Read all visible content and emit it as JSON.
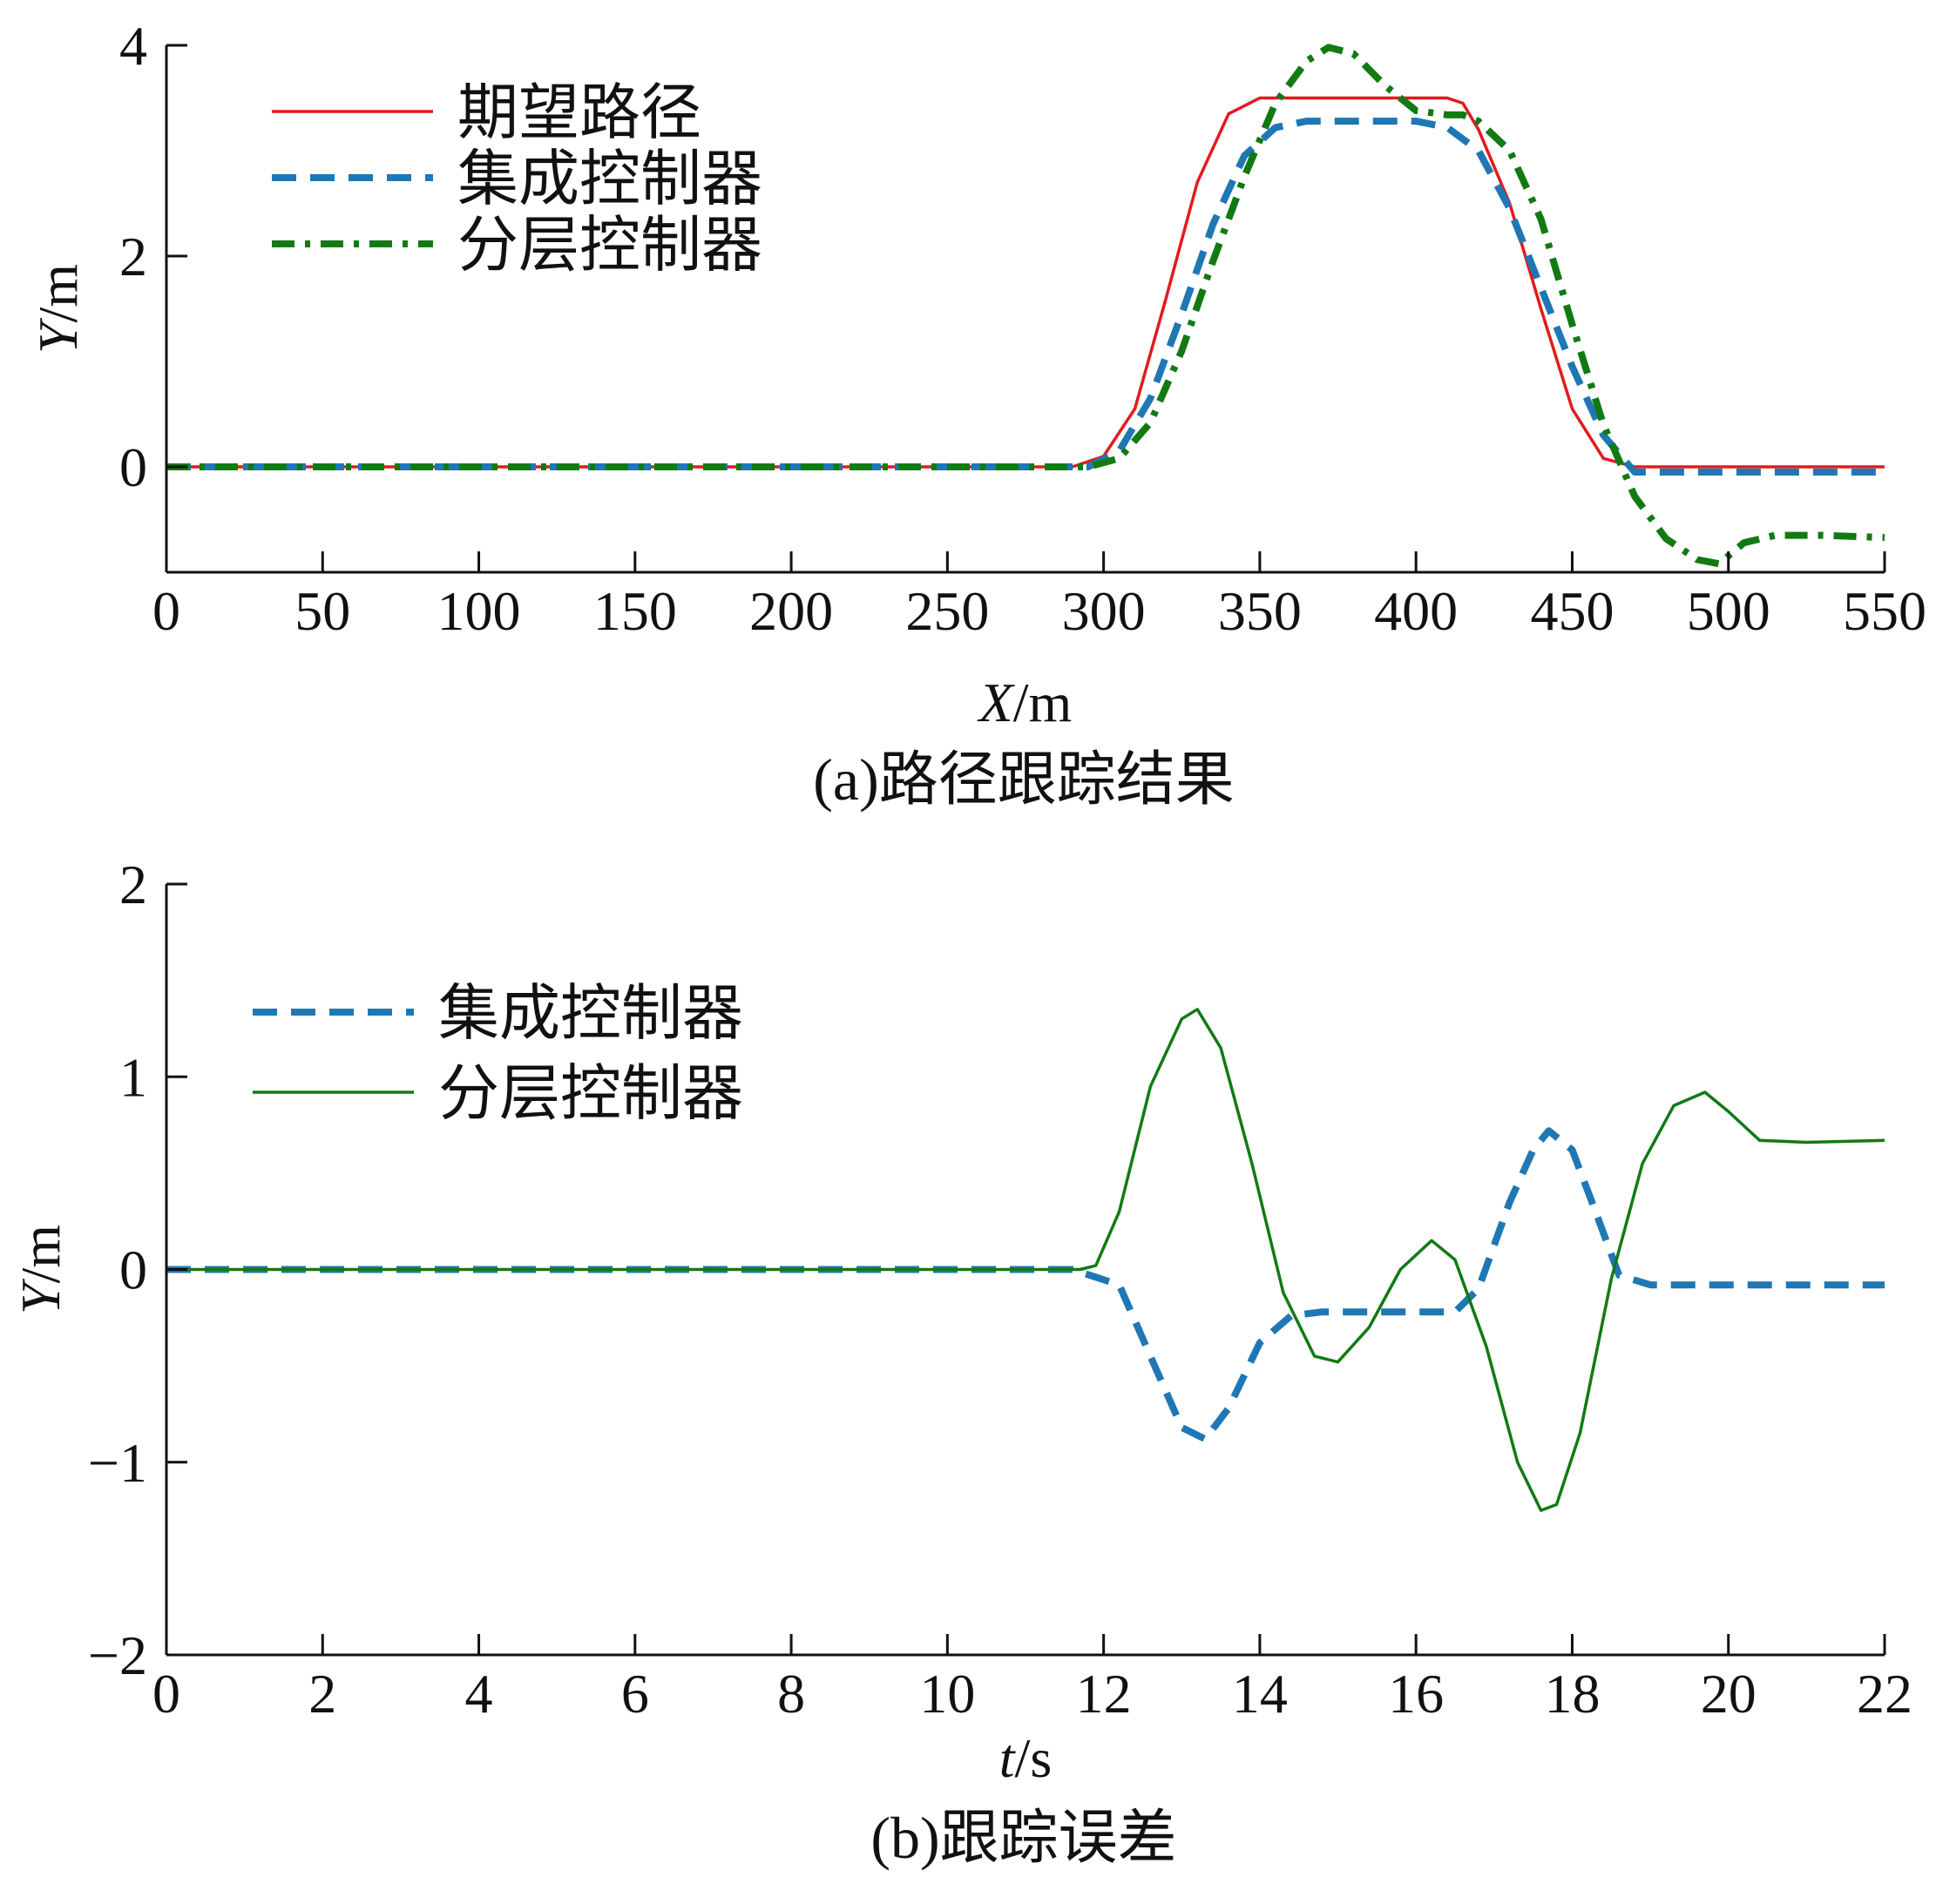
{
  "colors": {
    "red": "#e31a1c",
    "blue": "#1f77b4",
    "green": "#127a12",
    "axis": "#111111"
  },
  "chart_data": [
    {
      "type": "line",
      "caption": "(a)路径跟踪结果",
      "xlabel": {
        "var": "X",
        "unit": "/m"
      },
      "ylabel": {
        "var": "Y",
        "unit": "/m"
      },
      "xlim": [
        0,
        550
      ],
      "ylim": [
        -1,
        4
      ],
      "xticks": [
        "0",
        "50",
        "100",
        "150",
        "200",
        "250",
        "300",
        "350",
        "400",
        "450",
        "500",
        "550"
      ],
      "yticks": [
        "0",
        "2",
        "4"
      ],
      "legend_position": "top-left",
      "series": [
        {
          "name": "期望路径",
          "color": "red",
          "style": "solid",
          "x": [
            0,
            290,
            300,
            310,
            320,
            330,
            340,
            350,
            360,
            380,
            400,
            410,
            415,
            420,
            430,
            440,
            450,
            460,
            470,
            480,
            500,
            550
          ],
          "y": [
            0,
            0,
            0.1,
            0.55,
            1.6,
            2.7,
            3.35,
            3.5,
            3.5,
            3.5,
            3.5,
            3.5,
            3.45,
            3.2,
            2.5,
            1.5,
            0.55,
            0.08,
            0,
            0,
            0,
            0
          ]
        },
        {
          "name": "集成控制器",
          "color": "blue",
          "style": "dashed",
          "x": [
            0,
            295,
            305,
            315,
            325,
            335,
            345,
            355,
            365,
            380,
            400,
            410,
            420,
            430,
            440,
            450,
            460,
            470,
            480,
            500,
            550
          ],
          "y": [
            0,
            0,
            0.15,
            0.65,
            1.45,
            2.3,
            2.95,
            3.22,
            3.28,
            3.28,
            3.28,
            3.22,
            3.0,
            2.45,
            1.7,
            0.95,
            0.3,
            -0.05,
            -0.05,
            -0.05,
            -0.05
          ]
        },
        {
          "name": "分层控制器",
          "color": "green",
          "style": "dashdot",
          "x": [
            0,
            295,
            305,
            315,
            325,
            335,
            345,
            355,
            365,
            372,
            380,
            390,
            400,
            410,
            415,
            420,
            430,
            440,
            450,
            460,
            470,
            480,
            490,
            497,
            505,
            515,
            530,
            550
          ],
          "y": [
            0,
            0,
            0.08,
            0.42,
            1.1,
            1.95,
            2.75,
            3.45,
            3.85,
            3.98,
            3.92,
            3.62,
            3.38,
            3.34,
            3.34,
            3.28,
            3.0,
            2.35,
            1.35,
            0.4,
            -0.28,
            -0.68,
            -0.88,
            -0.92,
            -0.72,
            -0.65,
            -0.65,
            -0.67
          ]
        }
      ]
    },
    {
      "type": "line",
      "caption": "(b)跟踪误差",
      "xlabel": {
        "var": "t",
        "unit": "/s"
      },
      "ylabel": {
        "var": "Y",
        "unit": "/m"
      },
      "xlim": [
        0,
        22
      ],
      "ylim": [
        -2,
        2
      ],
      "xticks": [
        "0",
        "2",
        "4",
        "6",
        "8",
        "10",
        "12",
        "14",
        "16",
        "18",
        "20",
        "22"
      ],
      "yticks": [
        "−2",
        "−1",
        "0",
        "1",
        "2"
      ],
      "legend_position": "top-left",
      "series": [
        {
          "name": "集成控制器",
          "color": "blue",
          "style": "dashed",
          "x": [
            0,
            11.6,
            12.2,
            12.6,
            13.0,
            13.3,
            13.6,
            14.0,
            14.4,
            14.8,
            15.5,
            16.0,
            16.5,
            16.8,
            17.2,
            17.5,
            17.7,
            18.0,
            18.3,
            18.6,
            19.0,
            20,
            22
          ],
          "y": [
            0,
            0,
            -0.08,
            -0.45,
            -0.82,
            -0.88,
            -0.72,
            -0.38,
            -0.24,
            -0.22,
            -0.22,
            -0.22,
            -0.22,
            -0.1,
            0.35,
            0.62,
            0.72,
            0.62,
            0.3,
            -0.03,
            -0.08,
            -0.08,
            -0.08
          ]
        },
        {
          "name": "分层控制器",
          "color": "green",
          "style": "solid",
          "x": [
            0,
            11.7,
            11.9,
            12.2,
            12.6,
            13.0,
            13.2,
            13.5,
            13.9,
            14.3,
            14.7,
            15.0,
            15.4,
            15.8,
            16.2,
            16.5,
            16.9,
            17.3,
            17.6,
            17.8,
            18.1,
            18.5,
            18.9,
            19.3,
            19.7,
            20.0,
            20.4,
            21,
            22
          ],
          "y": [
            0,
            0,
            0.02,
            0.3,
            0.95,
            1.3,
            1.35,
            1.15,
            0.55,
            -0.12,
            -0.45,
            -0.48,
            -0.3,
            0.0,
            0.15,
            0.05,
            -0.4,
            -1.0,
            -1.25,
            -1.22,
            -0.85,
            -0.05,
            0.55,
            0.85,
            0.92,
            0.82,
            0.67,
            0.66,
            0.67
          ]
        }
      ]
    }
  ]
}
